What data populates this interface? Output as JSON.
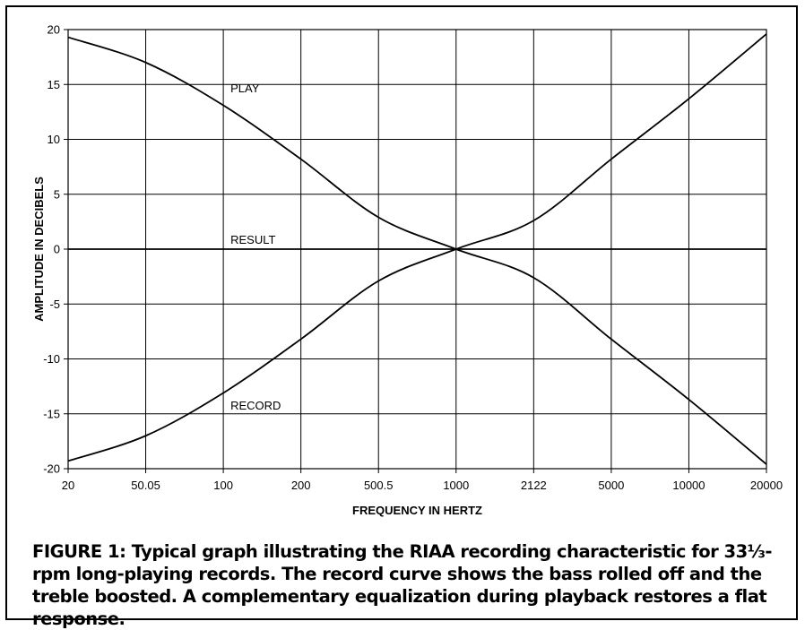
{
  "chart_data": {
    "type": "line",
    "xlabel": "FREQUENCY IN HERTZ",
    "ylabel": "AMPLITUDE IN DECIBELS",
    "categories": [
      "20",
      "50.05",
      "100",
      "200",
      "500.5",
      "1000",
      "2122",
      "5000",
      "10000",
      "20000"
    ],
    "ylim": [
      -20,
      20
    ],
    "yticks": [
      20,
      15,
      10,
      5,
      0,
      -5,
      -10,
      -15,
      -20
    ],
    "grid": true,
    "series": [
      {
        "name": "PLAY",
        "values": [
          19.3,
          17.0,
          13.1,
          8.2,
          2.9,
          0.0,
          -2.6,
          -8.2,
          -13.7,
          -19.6
        ]
      },
      {
        "name": "RESULT",
        "values": [
          0,
          0,
          0,
          0,
          0,
          0,
          0,
          0,
          0,
          0
        ]
      },
      {
        "name": "RECORD",
        "values": [
          -19.3,
          -17.0,
          -13.1,
          -8.2,
          -2.9,
          0.0,
          2.6,
          8.2,
          13.7,
          19.6
        ]
      }
    ],
    "annotations": [
      {
        "text": "PLAY",
        "x": "100",
        "y": 14.3
      },
      {
        "text": "RESULT",
        "x": "100",
        "y": 0.5
      },
      {
        "text": "RECORD",
        "x": "100",
        "y": -14.6
      }
    ]
  },
  "caption": "FIGURE 1: Typical graph illustrating the RIAA recording characteristic for 33⅓-rpm long-playing records. The record curve shows the bass rolled off and the treble boosted. A complementary equalization during playback restores a flat response."
}
